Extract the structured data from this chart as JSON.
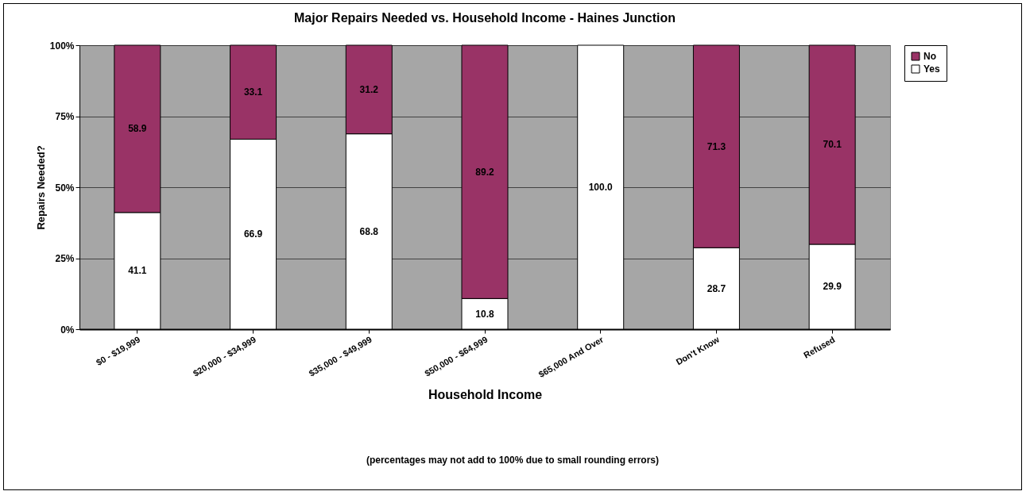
{
  "chart_data": {
    "type": "bar",
    "stacked": true,
    "title": "Major Repairs Needed vs. Household Income - Haines Junction",
    "xlabel": "Household Income",
    "ylabel": "Repairs Needed?",
    "categories": [
      "$0 - $19,999",
      "$20,000 - $34,999",
      "$35,000 - $49,999",
      "$50,000 - $64,999",
      "$65,000 And Over",
      "Don't Know",
      "Refused"
    ],
    "series": [
      {
        "name": "Yes",
        "color": "#ffffff",
        "values": [
          41.1,
          66.9,
          68.8,
          10.8,
          100.0,
          28.7,
          29.9
        ],
        "value_labels": [
          "41.1",
          "66.9",
          "68.8",
          "10.8",
          "100.0",
          "28.7",
          "29.9"
        ]
      },
      {
        "name": "No",
        "color": "#993366",
        "values": [
          58.9,
          33.1,
          31.2,
          89.2,
          null,
          71.3,
          70.1
        ],
        "value_labels": [
          "58.9",
          "33.1",
          "31.2",
          "89.2",
          null,
          "71.3",
          "70.1"
        ]
      }
    ],
    "ylim": [
      0,
      100
    ],
    "yticks": [
      {
        "value": 0,
        "label": "0%"
      },
      {
        "value": 25,
        "label": "25%"
      },
      {
        "value": 50,
        "label": "50%"
      },
      {
        "value": 75,
        "label": "75%"
      },
      {
        "value": 100,
        "label": "100%"
      }
    ],
    "grid": "y",
    "legend": "right",
    "annotations": [
      "(percentages may not add to 100% due to small rounding errors)"
    ]
  }
}
